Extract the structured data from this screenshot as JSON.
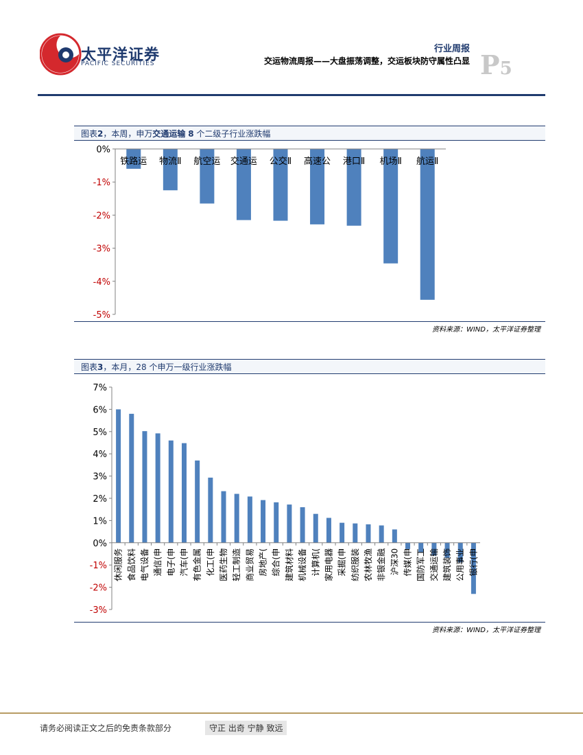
{
  "header": {
    "logo_cn": "太平洋证券",
    "logo_en": "PACIFIC SECURITIES",
    "report_type": "行业周报",
    "report_title": "交运物流周报——大盘振荡调整，交运板块防守属性凸显",
    "page_letter": "P",
    "page_digit": "5",
    "brand_color": "#1f3a6e",
    "logo_red": "#d4282d"
  },
  "figure2": {
    "label": "图表",
    "number": "2",
    "caption_pre": "，本周，申万",
    "caption_bold": "交通运输",
    "caption_num": "8",
    "caption_post": "个二级子行业涨跌幅",
    "source": "资料来源：WIND，太平洋证券整理"
  },
  "figure3": {
    "label": "图表",
    "number": "3",
    "caption_post": "，本月，28 个申万一级行业涨跌幅",
    "source": "资料来源：WIND，太平洋证券整理"
  },
  "chart_data": [
    {
      "type": "bar",
      "categories": [
        "铁路运",
        "物流Ⅱ",
        "航空运",
        "交通运",
        "公交Ⅱ",
        "高速公",
        "港口Ⅱ",
        "机场Ⅱ",
        "航运Ⅱ"
      ],
      "values": [
        -0.6,
        -1.25,
        -1.65,
        -2.15,
        -2.17,
        -2.28,
        -2.32,
        -3.46,
        -4.56
      ],
      "yticks": [
        "0%",
        "-1%",
        "-2%",
        "-3%",
        "-4%",
        "-5%"
      ],
      "ylim": [
        -5,
        0
      ],
      "bar_color": "#4f81bd"
    },
    {
      "type": "bar",
      "categories": [
        "休闲服务",
        "食品饮料",
        "电气设备",
        "通信(申",
        "电子(申",
        "汽车(申",
        "有色金属",
        "化工(申",
        "医药生物",
        "轻工制造",
        "商业贸易",
        "房地产(",
        "综合(申",
        "建筑材料",
        "机械设备",
        "计算机(",
        "家用电器",
        "采掘(申",
        "纺织服装",
        "农林牧渔",
        "非银金融",
        "沪深30",
        "传媒(申",
        "国防军工",
        "交通运输",
        "建筑装饰",
        "公用事业",
        "银行(申"
      ],
      "values": [
        6.0,
        5.8,
        5.02,
        4.92,
        4.6,
        4.48,
        3.7,
        2.93,
        2.32,
        2.2,
        2.08,
        1.92,
        1.82,
        1.72,
        1.6,
        1.3,
        1.12,
        0.9,
        0.87,
        0.83,
        0.78,
        0.6,
        -0.28,
        -0.42,
        -0.58,
        -0.68,
        -0.88,
        -2.3
      ],
      "yticks": [
        "7%",
        "6%",
        "5%",
        "4%",
        "3%",
        "2%",
        "1%",
        "0%",
        "-1%",
        "-2%",
        "-3%"
      ],
      "ylim": [
        -3,
        7
      ],
      "bar_color": "#4f81bd"
    }
  ],
  "footer": {
    "disclaimer": "请务必阅读正文之后的免责条款部分",
    "motto": "守正 出奇 宁静 致远"
  }
}
